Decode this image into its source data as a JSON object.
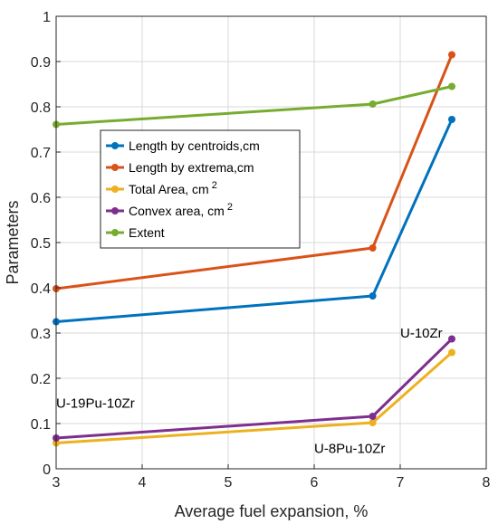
{
  "chart_data": {
    "type": "line",
    "xlabel": "Average fuel expansion, %",
    "ylabel": "Parameters",
    "xlim": [
      3,
      8
    ],
    "ylim": [
      0,
      1
    ],
    "x_ticks": [
      "3",
      "4",
      "5",
      "6",
      "7",
      "8"
    ],
    "y_ticks": [
      "0",
      "0.1",
      "0.2",
      "0.3",
      "0.4",
      "0.5",
      "0.6",
      "0.7",
      "0.8",
      "0.9",
      "1"
    ],
    "grid": true,
    "legend_position": "center-left",
    "series": [
      {
        "name": "Length by centroids,cm",
        "color": "#0072BD",
        "x": [
          3,
          6.68,
          7.6
        ],
        "y": [
          0.325,
          0.382,
          0.772
        ]
      },
      {
        "name": "Length by extrema,cm",
        "color": "#D95319",
        "x": [
          3,
          6.68,
          7.6
        ],
        "y": [
          0.398,
          0.488,
          0.915
        ]
      },
      {
        "name": "Total Area, cm",
        "superscript": "2",
        "color": "#EDB120",
        "x": [
          3,
          6.68,
          7.6
        ],
        "y": [
          0.057,
          0.102,
          0.257
        ]
      },
      {
        "name": "Convex area, cm",
        "superscript": "2",
        "color": "#7E2F8E",
        "x": [
          3,
          6.68,
          7.6
        ],
        "y": [
          0.068,
          0.116,
          0.287
        ]
      },
      {
        "name": "Extent",
        "color": "#77AC30",
        "x": [
          3,
          6.68,
          7.6
        ],
        "y": [
          0.761,
          0.806,
          0.845
        ]
      }
    ],
    "annotations": [
      {
        "text": "U-19Pu-10Zr",
        "x": 3.0,
        "y": 0.145
      },
      {
        "text": "U-8Pu-10Zr",
        "x": 6.0,
        "y": 0.045
      },
      {
        "text": "U-10Zr",
        "x": 7.0,
        "y": 0.3
      }
    ]
  }
}
